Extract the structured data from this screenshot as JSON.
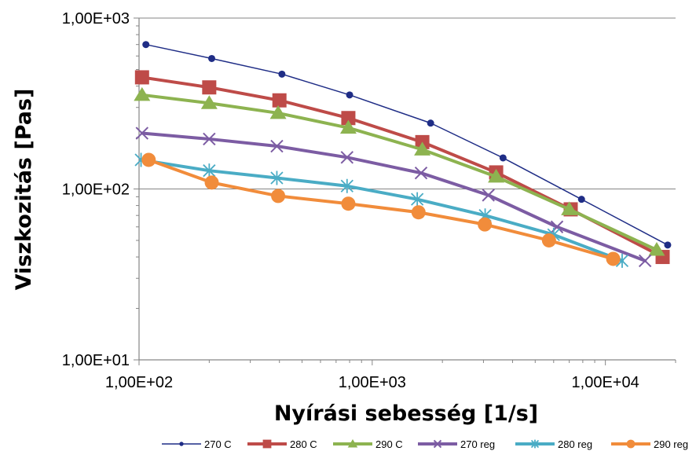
{
  "chart_data": {
    "type": "line",
    "title": "",
    "xlabel": "Nyírási sebesség [1/s]",
    "ylabel": "Viszkozitás [Pas]",
    "x_scale": "log",
    "y_scale": "log",
    "xlim": [
      100,
      20000
    ],
    "ylim": [
      10,
      1000
    ],
    "x_ticks": [
      "1,00E+02",
      "1,00E+03",
      "1,00E+04"
    ],
    "y_ticks": [
      "1,00E+01",
      "1,00E+02",
      "1,00E+03"
    ],
    "grid": "horizontal major",
    "legend_position": "bottom",
    "series": [
      {
        "name": "270 C",
        "color": "#1f2d86",
        "marker": "circle",
        "line_width": 1.5,
        "x": [
          107,
          205,
          410,
          800,
          1780,
          3640,
          7900,
          18500
        ],
        "y": [
          700,
          580,
          470,
          355,
          243,
          152,
          87,
          47
        ]
      },
      {
        "name": "280 C",
        "color": "#be4b48",
        "marker": "square",
        "line_width": 4,
        "x": [
          103,
          200,
          400,
          790,
          1640,
          3400,
          7100,
          17600
        ],
        "y": [
          450,
          393,
          330,
          260,
          188,
          125,
          76,
          40
        ]
      },
      {
        "name": "290 C",
        "color": "#8db350",
        "marker": "triangle",
        "line_width": 4,
        "x": [
          103,
          200,
          395,
          790,
          1640,
          3400,
          7000,
          16600
        ],
        "y": [
          355,
          318,
          278,
          228,
          170,
          118,
          76,
          44
        ]
      },
      {
        "name": "270 reg",
        "color": "#7c5ca3",
        "marker": "x",
        "line_width": 4,
        "x": [
          103,
          200,
          390,
          780,
          1620,
          3150,
          6200,
          14800
        ],
        "y": [
          212,
          196,
          178,
          153,
          124,
          92,
          60,
          38
        ]
      },
      {
        "name": "280 reg",
        "color": "#4aacc5",
        "marker": "asterisk",
        "line_width": 4,
        "x": [
          102,
          200,
          390,
          780,
          1560,
          3050,
          6000,
          11800
        ],
        "y": [
          148,
          128,
          116,
          104,
          87,
          70,
          54,
          38
        ]
      },
      {
        "name": "290 reg",
        "color": "#f18c3b",
        "marker": "circle",
        "line_width": 4,
        "x": [
          110,
          205,
          395,
          790,
          1580,
          3040,
          5730,
          10800
        ],
        "y": [
          148,
          109,
          91,
          82,
          73,
          62,
          50,
          39
        ]
      }
    ]
  }
}
